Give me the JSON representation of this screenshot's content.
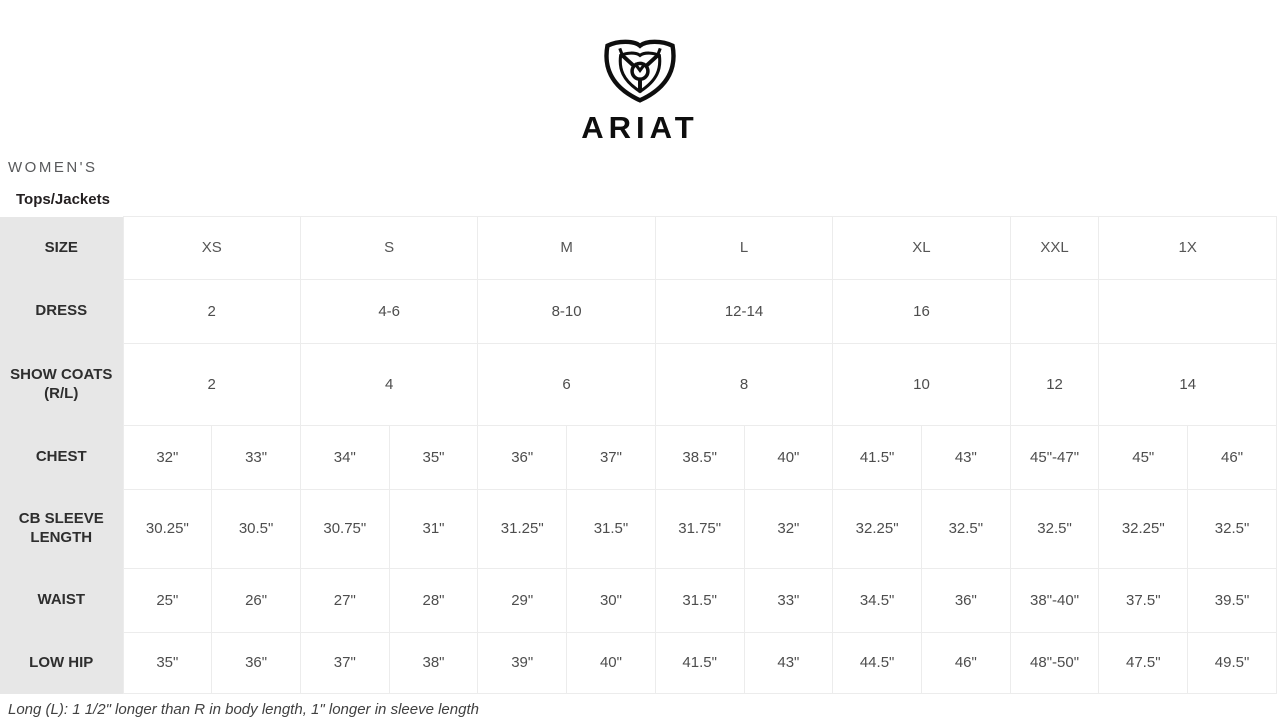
{
  "brand": {
    "logo_icon": "ariat-shield-logo",
    "wordmark": "ARIAT"
  },
  "section": {
    "department": "WOMEN'S",
    "category": "Tops/Jackets"
  },
  "chart_data": {
    "type": "table",
    "title": "ARIAT WOMEN'S Tops/Jackets Size Chart",
    "columns": 13,
    "rows": [
      {
        "label": "SIZE",
        "cells": [
          {
            "text": "XS",
            "span": 2
          },
          {
            "text": "S",
            "span": 2
          },
          {
            "text": "M",
            "span": 2
          },
          {
            "text": "L",
            "span": 2
          },
          {
            "text": "XL",
            "span": 2
          },
          {
            "text": "XXL",
            "span": 1
          },
          {
            "text": "1X",
            "span": 2
          }
        ]
      },
      {
        "label": "DRESS",
        "cells": [
          {
            "text": "2",
            "span": 2
          },
          {
            "text": "4-6",
            "span": 2
          },
          {
            "text": "8-10",
            "span": 2
          },
          {
            "text": "12-14",
            "span": 2
          },
          {
            "text": "16",
            "span": 2
          },
          {
            "text": "",
            "span": 1
          },
          {
            "text": "",
            "span": 2
          }
        ]
      },
      {
        "label": "SHOW COATS (R/L)",
        "cells": [
          {
            "text": "2",
            "span": 2
          },
          {
            "text": "4",
            "span": 2
          },
          {
            "text": "6",
            "span": 2
          },
          {
            "text": "8",
            "span": 2
          },
          {
            "text": "10",
            "span": 2
          },
          {
            "text": "12",
            "span": 1
          },
          {
            "text": "14",
            "span": 2
          }
        ]
      },
      {
        "label": "CHEST",
        "cells": [
          "32\"",
          "33\"",
          "34\"",
          "35\"",
          "36\"",
          "37\"",
          "38.5\"",
          "40\"",
          "41.5\"",
          "43\"",
          "45\"-47\"",
          "45\"",
          "46\""
        ]
      },
      {
        "label": "CB SLEEVE LENGTH",
        "cells": [
          "30.25\"",
          "30.5\"",
          "30.75\"",
          "31\"",
          "31.25\"",
          "31.5\"",
          "31.75\"",
          "32\"",
          "32.25\"",
          "32.5\"",
          "32.5\"",
          "32.25\"",
          "32.5\""
        ]
      },
      {
        "label": "WAIST",
        "cells": [
          "25\"",
          "26\"",
          "27\"",
          "28\"",
          "29\"",
          "30\"",
          "31.5\"",
          "33\"",
          "34.5\"",
          "36\"",
          "38\"-40\"",
          "37.5\"",
          "39.5\""
        ]
      },
      {
        "label": "LOW HIP",
        "cells": [
          "35\"",
          "36\"",
          "37\"",
          "38\"",
          "39\"",
          "40\"",
          "41.5\"",
          "43\"",
          "44.5\"",
          "46\"",
          "48\"-50\"",
          "47.5\"",
          "49.5\""
        ]
      }
    ],
    "footnote": "Long (L): 1 1/2\" longer than R in body length, 1\" longer in sleeve length"
  },
  "colors": {
    "label_column_bg": "#e7e7e7",
    "cell_border": "#ececec",
    "text_dark": "#231f20",
    "text_gray": "#58595b"
  }
}
